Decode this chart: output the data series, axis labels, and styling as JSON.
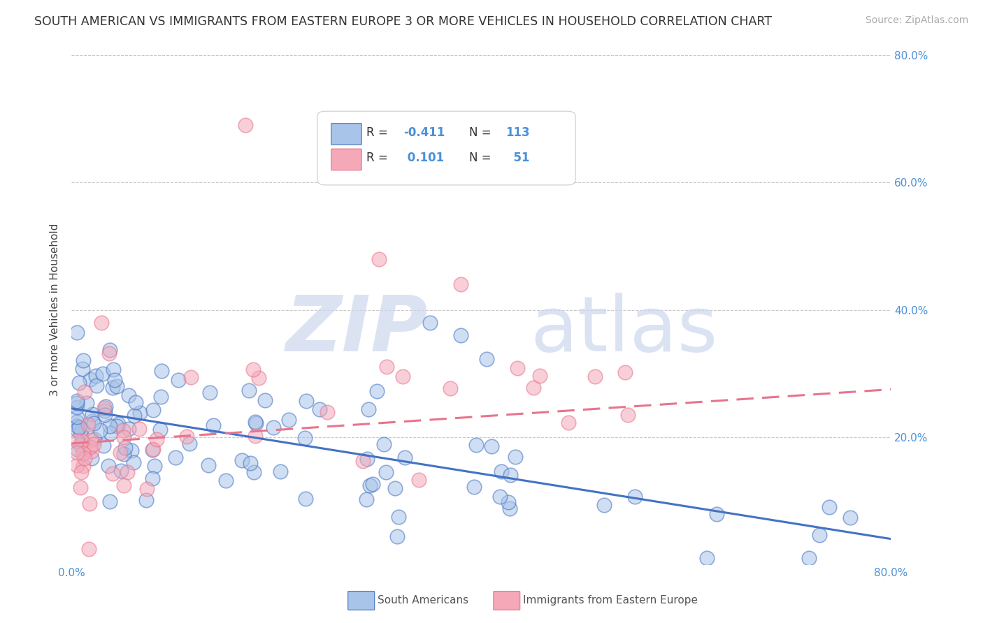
{
  "title": "SOUTH AMERICAN VS IMMIGRANTS FROM EASTERN EUROPE 3 OR MORE VEHICLES IN HOUSEHOLD CORRELATION CHART",
  "source": "Source: ZipAtlas.com",
  "ylabel": "3 or more Vehicles in Household",
  "xlabel": "",
  "xlim": [
    0.0,
    0.8
  ],
  "ylim": [
    0.0,
    0.8
  ],
  "right_yticklabels": [
    "",
    "20.0%",
    "40.0%",
    "60.0%",
    "80.0%"
  ],
  "xticklabels": [
    "0.0%",
    "",
    "",
    "",
    "",
    "",
    "",
    "",
    "80.0%"
  ],
  "watermark_zip": "ZIP",
  "watermark_atlas": "atlas",
  "color_blue": "#a8c4e8",
  "color_pink": "#f4a8b8",
  "line_blue": "#4472c4",
  "line_pink": "#e8748c",
  "title_color": "#333333",
  "axis_color": "#4a90d9",
  "blue_line_x": [
    0.0,
    0.8
  ],
  "blue_line_y": [
    0.245,
    0.04
  ],
  "pink_line_x": [
    0.0,
    0.8
  ],
  "pink_line_y": [
    0.19,
    0.275
  ]
}
